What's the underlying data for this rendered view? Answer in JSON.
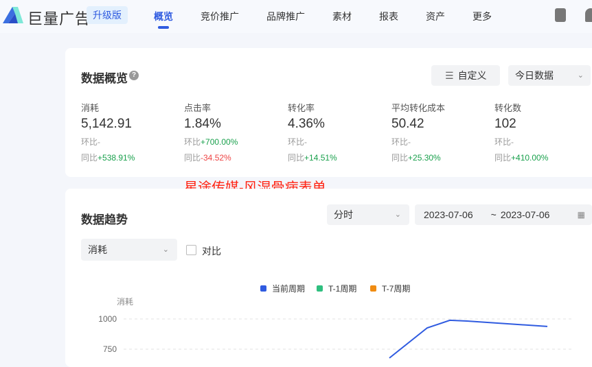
{
  "header": {
    "brand": "巨量广告",
    "upgrade": "升级版",
    "nav": [
      "概览",
      "竞价推广",
      "品牌推广",
      "素材",
      "报表",
      "资产",
      "更多"
    ],
    "active": "概览"
  },
  "overview": {
    "title": "数据概览",
    "help": "?",
    "customize": "自定义",
    "range": "今日数据",
    "metrics": [
      {
        "label": "消耗",
        "value": "5,142.91",
        "hb": "环比-",
        "tb_label": "同比",
        "tb": "+538.91%",
        "tb_dir": "up"
      },
      {
        "label": "点击率",
        "value": "1.84%",
        "hb": "环比",
        "hb_val": "+700.00%",
        "tb_label": "同比",
        "tb": "-34.52%",
        "tb_dir": "down"
      },
      {
        "label": "转化率",
        "value": "4.36%",
        "hb": "环比-",
        "tb_label": "同比",
        "tb": "+14.51%",
        "tb_dir": "up"
      },
      {
        "label": "平均转化成本",
        "value": "50.42",
        "hb": "环比-",
        "tb_label": "同比",
        "tb": "+25.30%",
        "tb_dir": "up"
      },
      {
        "label": "转化数",
        "value": "102",
        "hb": "环比-",
        "tb_label": "同比",
        "tb": "+410.00%",
        "tb_dir": "up"
      }
    ]
  },
  "watermark": "星途传媒-风湿骨病表单",
  "trend": {
    "title": "数据趋势",
    "granularity": "分时",
    "date_from": "2023-07-06",
    "sep": "~",
    "date_to": "2023-07-06",
    "metric": "消耗",
    "compare": "对比"
  },
  "chart_data": {
    "type": "line",
    "ylabel": "消耗",
    "yticks": [
      1000,
      750
    ],
    "series": [
      {
        "name": "当前周期",
        "color": "#2f5be0",
        "values": [
          677,
          926,
          989,
          983,
          938
        ]
      },
      {
        "name": "T-1周期",
        "color": "#2fbf7f",
        "values": []
      },
      {
        "name": "T-7周期",
        "color": "#f08c12",
        "values": []
      }
    ],
    "grid": true,
    "legend": "top"
  }
}
